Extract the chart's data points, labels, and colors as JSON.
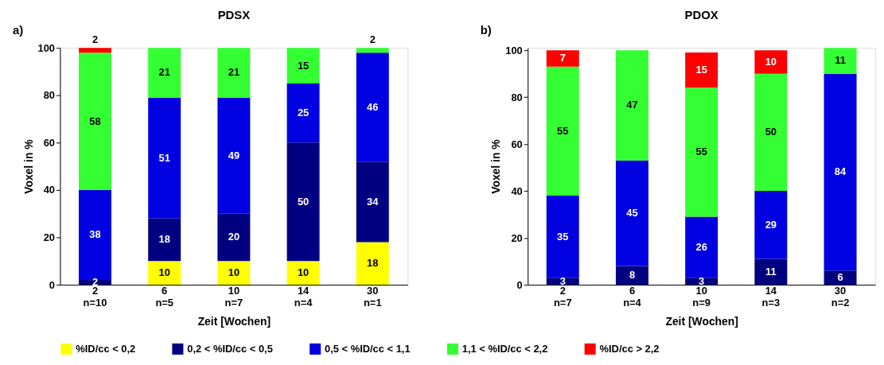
{
  "chart_data": [
    {
      "type": "bar",
      "stacked": true,
      "title": "PDSX",
      "annotations": [
        "a)"
      ],
      "xlabel": "Zeit [Wochen]",
      "ylabel": "Voxel in %",
      "categories": [
        "2\nn=10",
        "6\nn=5",
        "10\nn=7",
        "14\nn=4",
        "30\nn=1"
      ],
      "ylim": [
        0,
        100
      ],
      "yticks": [
        0,
        20,
        40,
        60,
        80,
        100
      ],
      "grid": false,
      "legend": "bottom",
      "data_labels": true,
      "series": [
        {
          "name": "%ID/cc < 0,2",
          "color": "#ffff00",
          "values": [
            null,
            10,
            10,
            10,
            18
          ]
        },
        {
          "name": "0,2 < %ID/cc < 0,5",
          "color": "#000080",
          "values": [
            2,
            18,
            20,
            50,
            34
          ]
        },
        {
          "name": "0,5 < %ID/cc < 1,1",
          "color": "#0000e0",
          "values": [
            38,
            51,
            49,
            25,
            46
          ]
        },
        {
          "name": "1,1 < %ID/cc < 2,2",
          "color": "#33ff33",
          "values": [
            58,
            21,
            21,
            15,
            2
          ]
        },
        {
          "name": "%ID/cc > 2,2",
          "color": "#ff0000",
          "values": [
            2,
            null,
            null,
            null,
            null
          ]
        }
      ]
    },
    {
      "type": "bar",
      "stacked": true,
      "title": "PDOX",
      "annotations": [
        "b)"
      ],
      "xlabel": "Zeit [Wochen]",
      "ylabel": "Voxel in %",
      "categories": [
        "2\nn=7",
        "6\nn=4",
        "10\nn=9",
        "14\nn=3",
        "30\nn=2"
      ],
      "ylim": [
        0,
        101
      ],
      "yticks": [
        0,
        20,
        40,
        60,
        80,
        100
      ],
      "grid": false,
      "legend": "bottom",
      "data_labels": true,
      "series": [
        {
          "name": "%ID/cc < 0,2",
          "color": "#ffff00",
          "values": [
            null,
            null,
            null,
            null,
            null
          ]
        },
        {
          "name": "0,2 < %ID/cc < 0,5",
          "color": "#000080",
          "values": [
            3,
            8,
            3,
            11,
            6
          ]
        },
        {
          "name": "0,5 < %ID/cc < 1,1",
          "color": "#0000e0",
          "values": [
            35,
            45,
            26,
            29,
            84
          ]
        },
        {
          "name": "1,1 < %ID/cc < 2,2",
          "color": "#33ff33",
          "values": [
            55,
            47,
            55,
            50,
            11
          ]
        },
        {
          "name": "%ID/cc > 2,2",
          "color": "#ff0000",
          "values": [
            7,
            null,
            15,
            10,
            null
          ]
        }
      ]
    }
  ]
}
